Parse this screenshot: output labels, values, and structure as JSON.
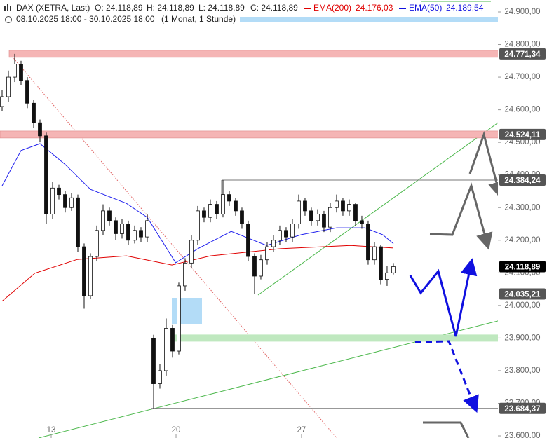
{
  "chart_data": {
    "type": "candlestick",
    "title": "DAX (XETRA, Last)",
    "quote": [
      "O: 24.118,89",
      "H: 24.118,89",
      "L: 24.118,89",
      "C: 24.118,89"
    ],
    "period": "08.10.2025 18:00 - 30.10.2025 18:00",
    "interval": "(1 Monat, 1 Stunde)",
    "xlim": [
      -0.333,
      78.56
    ],
    "xticks": [
      {
        "value": 7.78,
        "label": "13"
      },
      {
        "value": 27.56,
        "label": "20"
      },
      {
        "value": 47.44,
        "label": "27"
      }
    ],
    "ylim": [
      23593.6,
      24936.5
    ],
    "yticks": [
      {
        "value": 23600,
        "label": "23.600,00"
      },
      {
        "value": 23700,
        "label": "23.700,00"
      },
      {
        "value": 23800,
        "label": "23.800,00"
      },
      {
        "value": 23900,
        "label": "23.900,00"
      },
      {
        "value": 24000,
        "label": "24.000,00"
      },
      {
        "value": 24100,
        "label": "24.100,00"
      },
      {
        "value": 24200,
        "label": "24.200,00"
      },
      {
        "value": 24300,
        "label": "24.300,00"
      },
      {
        "value": 24400,
        "label": "24.400,00"
      },
      {
        "value": 24500,
        "label": "24.500,00"
      },
      {
        "value": 24600,
        "label": "24.600,00"
      },
      {
        "value": 24700,
        "label": "24.700,00"
      },
      {
        "value": 24800,
        "label": "24.800,00"
      },
      {
        "value": 24900,
        "label": "24.900,00"
      }
    ],
    "open": [
      24610,
      24640,
      24700,
      24740,
      24690,
      24620,
      24560,
      24520,
      24280,
      24360,
      24340,
      24300,
      24330,
      24180,
      24030,
      24150,
      24230,
      24290,
      24260,
      24220,
      24250,
      24200,
      24230,
      24210,
      23900,
      23760,
      23800,
      23930,
      23860,
      24060,
      24130,
      24200,
      24290,
      24270,
      24310,
      24280,
      24340,
      24320,
      24290,
      24250,
      24150,
      24090,
      24140,
      24180,
      24200,
      24230,
      24210,
      24250,
      24320,
      24290,
      24260,
      24280,
      24240,
      24300,
      24320,
      24290,
      24310,
      24260,
      24250,
      24140,
      24180,
      24080,
      24100
    ],
    "high": [
      24660,
      24720,
      24771.34,
      24750,
      24700,
      24630,
      24570,
      24530,
      24380,
      24370,
      24350,
      24345,
      24340,
      24190,
      24160,
      24245,
      24310,
      24300,
      24270,
      24265,
      24260,
      24245,
      24240,
      24280,
      23910,
      23820,
      23960,
      23940,
      24070,
      24145,
      24215,
      24305,
      24300,
      24325,
      24320,
      24384.24,
      24350,
      24330,
      24300,
      24260,
      24160,
      24155,
      24195,
      24215,
      24245,
      24240,
      24265,
      24340,
      24330,
      24300,
      24295,
      24290,
      24315,
      24340,
      24330,
      24325,
      24315,
      24275,
      24260,
      24195,
      24185,
      24120,
      24130
    ],
    "low": [
      24595,
      24625,
      24685,
      24675,
      24605,
      24545,
      24500,
      24250,
      24265,
      24325,
      24285,
      24290,
      24165,
      23990,
      24020,
      24135,
      24215,
      24245,
      24200,
      24205,
      24185,
      24190,
      24195,
      24195,
      23684.37,
      23745,
      23785,
      23840,
      23850,
      24045,
      24115,
      24185,
      24255,
      24255,
      24265,
      24270,
      24305,
      24275,
      24235,
      24135,
      24035.21,
      24080,
      24125,
      24165,
      24185,
      24195,
      24195,
      24235,
      24275,
      24245,
      24245,
      24225,
      24225,
      24285,
      24275,
      24275,
      24245,
      24235,
      24125,
      24125,
      24065,
      24060,
      24095
    ],
    "close": [
      24640,
      24700,
      24740,
      24690,
      24620,
      24560,
      24520,
      24280,
      24360,
      24340,
      24300,
      24330,
      24180,
      24030,
      24150,
      24230,
      24290,
      24260,
      24220,
      24250,
      24200,
      24230,
      24210,
      24260,
      23760,
      23800,
      23930,
      23860,
      24060,
      24130,
      24200,
      24290,
      24270,
      24310,
      24280,
      24340,
      24320,
      24290,
      24250,
      24150,
      24090,
      24140,
      24180,
      24200,
      24230,
      24210,
      24250,
      24320,
      24290,
      24260,
      24280,
      24240,
      24300,
      24320,
      24290,
      24310,
      24260,
      24250,
      24140,
      24180,
      24080,
      24100,
      24118.89
    ],
    "series": [
      {
        "name": "EMA(200)",
        "color": "#e00000",
        "last_value_label": "24.176,03",
        "x": [
          0,
          5.2,
          11.9,
          19.7,
          26.9,
          33,
          44.1,
          55.2,
          62
        ],
        "values": [
          24013,
          24099,
          24141,
          24152,
          24124,
          24152,
          24174,
          24184,
          24176.03
        ]
      },
      {
        "name": "EMA(50)",
        "color": "#2020ee",
        "last_value_label": "24.189,54",
        "x": [
          0,
          3,
          6,
          10,
          14,
          19.7,
          23,
          27.5,
          31,
          36.3,
          41.9,
          47.4,
          53,
          57.5,
          60.3,
          62
        ],
        "values": [
          24367,
          24475,
          24496,
          24432,
          24356,
          24313,
          24270,
          24131,
          24174,
          24227,
          24184,
          24217,
          24238,
          24238,
          24217,
          24189.54
        ]
      }
    ],
    "levels": [
      {
        "value": 24771.34,
        "label": "24.771,34"
      },
      {
        "value": 24524.11,
        "label": "24.524,11"
      },
      {
        "value": 24384.24,
        "label": "24.384,24"
      },
      {
        "value": 24035.21,
        "label": "24.035,21"
      },
      {
        "value": 23684.37,
        "label": "23.684,37"
      }
    ],
    "support_zone": 23900,
    "last_price": {
      "value": 24118.89,
      "label": "24.118,89"
    }
  }
}
